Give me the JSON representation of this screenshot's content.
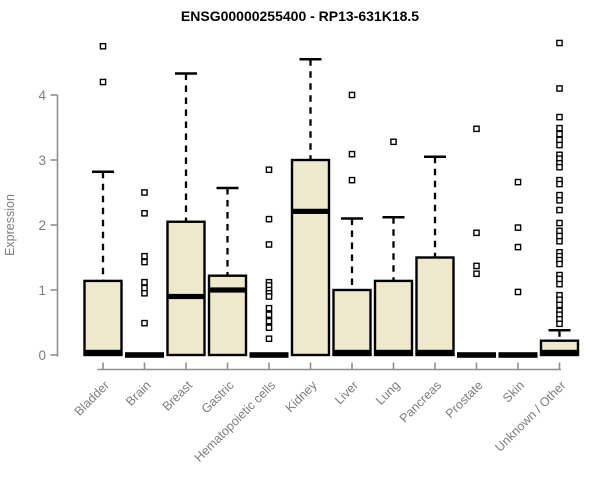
{
  "title": "ENSG00000255400 - RP13-631K18.5",
  "chart_data": {
    "type": "boxplot",
    "title": "ENSG00000255400 - RP13-631K18.5",
    "xlabel": "",
    "ylabel": "Expression",
    "ylim": [
      0,
      4.9
    ],
    "yticks": [
      0,
      1,
      2,
      3,
      4
    ],
    "grid": false,
    "legend": "none",
    "categories": [
      "Bladder",
      "Brain",
      "Breast",
      "Gastric",
      "Hematopoietic cells",
      "Kidney",
      "Liver",
      "Lung",
      "Pancreas",
      "Prostate",
      "Skin",
      "Unknown / Other"
    ],
    "boxes": [
      {
        "category": "Bladder",
        "q1": 0,
        "median": 0.02,
        "q3": 1.14,
        "whisker_low": 0,
        "whisker_high": 2.82,
        "outliers": [
          4.75,
          4.2
        ]
      },
      {
        "category": "Brain",
        "q1": 0,
        "median": 0,
        "q3": 0,
        "whisker_low": 0,
        "whisker_high": 0,
        "outliers": [
          2.5,
          2.18,
          1.52,
          1.43,
          1.12,
          1.03,
          0.95,
          0.49
        ]
      },
      {
        "category": "Breast",
        "q1": 0,
        "median": 0.9,
        "q3": 2.05,
        "whisker_low": 0,
        "whisker_high": 4.33,
        "outliers": []
      },
      {
        "category": "Gastric",
        "q1": 0,
        "median": 1.0,
        "q3": 1.22,
        "whisker_low": 0,
        "whisker_high": 2.57,
        "outliers": []
      },
      {
        "category": "Hematopoietic cells",
        "q1": 0,
        "median": 0,
        "q3": 0,
        "whisker_low": 0,
        "whisker_high": 0,
        "outliers": [
          2.85,
          2.09,
          1.7,
          1.12,
          1.07,
          1.0,
          0.95,
          0.9,
          0.72,
          0.62,
          0.52,
          0.42,
          0.25
        ]
      },
      {
        "category": "Kidney",
        "q1": 0,
        "median": 2.21,
        "q3": 3.0,
        "whisker_low": 0,
        "whisker_high": 4.55,
        "outliers": []
      },
      {
        "category": "Liver",
        "q1": 0,
        "median": 0.02,
        "q3": 1.0,
        "whisker_low": 0,
        "whisker_high": 2.1,
        "outliers": [
          4.0,
          3.09,
          2.69
        ]
      },
      {
        "category": "Lung",
        "q1": 0,
        "median": 0.02,
        "q3": 1.14,
        "whisker_low": 0,
        "whisker_high": 2.12,
        "outliers": [
          3.28
        ]
      },
      {
        "category": "Pancreas",
        "q1": 0,
        "median": 0.02,
        "q3": 1.5,
        "whisker_low": 0,
        "whisker_high": 3.05,
        "outliers": []
      },
      {
        "category": "Prostate",
        "q1": 0,
        "median": 0,
        "q3": 0,
        "whisker_low": 0,
        "whisker_high": 0,
        "outliers": [
          3.48,
          1.88,
          1.37,
          1.25
        ]
      },
      {
        "category": "Skin",
        "q1": 0,
        "median": 0,
        "q3": 0,
        "whisker_low": 0,
        "whisker_high": 0,
        "outliers": [
          2.66,
          1.96,
          1.66,
          0.97
        ]
      },
      {
        "category": "Unknown / Other",
        "q1": 0,
        "median": 0.02,
        "q3": 0.22,
        "whisker_low": 0,
        "whisker_high": 0.38,
        "outliers": [
          4.8,
          4.1,
          3.66,
          3.49,
          3.4,
          3.31,
          3.23,
          3.08,
          3.02,
          2.95,
          2.89,
          2.69,
          2.63,
          2.46,
          2.38,
          2.23,
          2.03,
          1.91,
          1.83,
          1.75,
          1.58,
          1.52,
          1.46,
          1.4,
          1.23,
          1.17,
          1.09,
          0.92,
          0.85,
          0.77,
          0.68,
          0.62,
          0.55,
          0.48
        ]
      }
    ],
    "colors": {
      "box_fill": "#EEE8CD",
      "box_border": "#000000",
      "median": "#000000",
      "whisker": "#000000",
      "outlier_fill": "#ffffff",
      "axis": "#8f8f8f",
      "tick_label": "#7d7d7d",
      "title": "#000000",
      "background": "#ffffff"
    }
  }
}
